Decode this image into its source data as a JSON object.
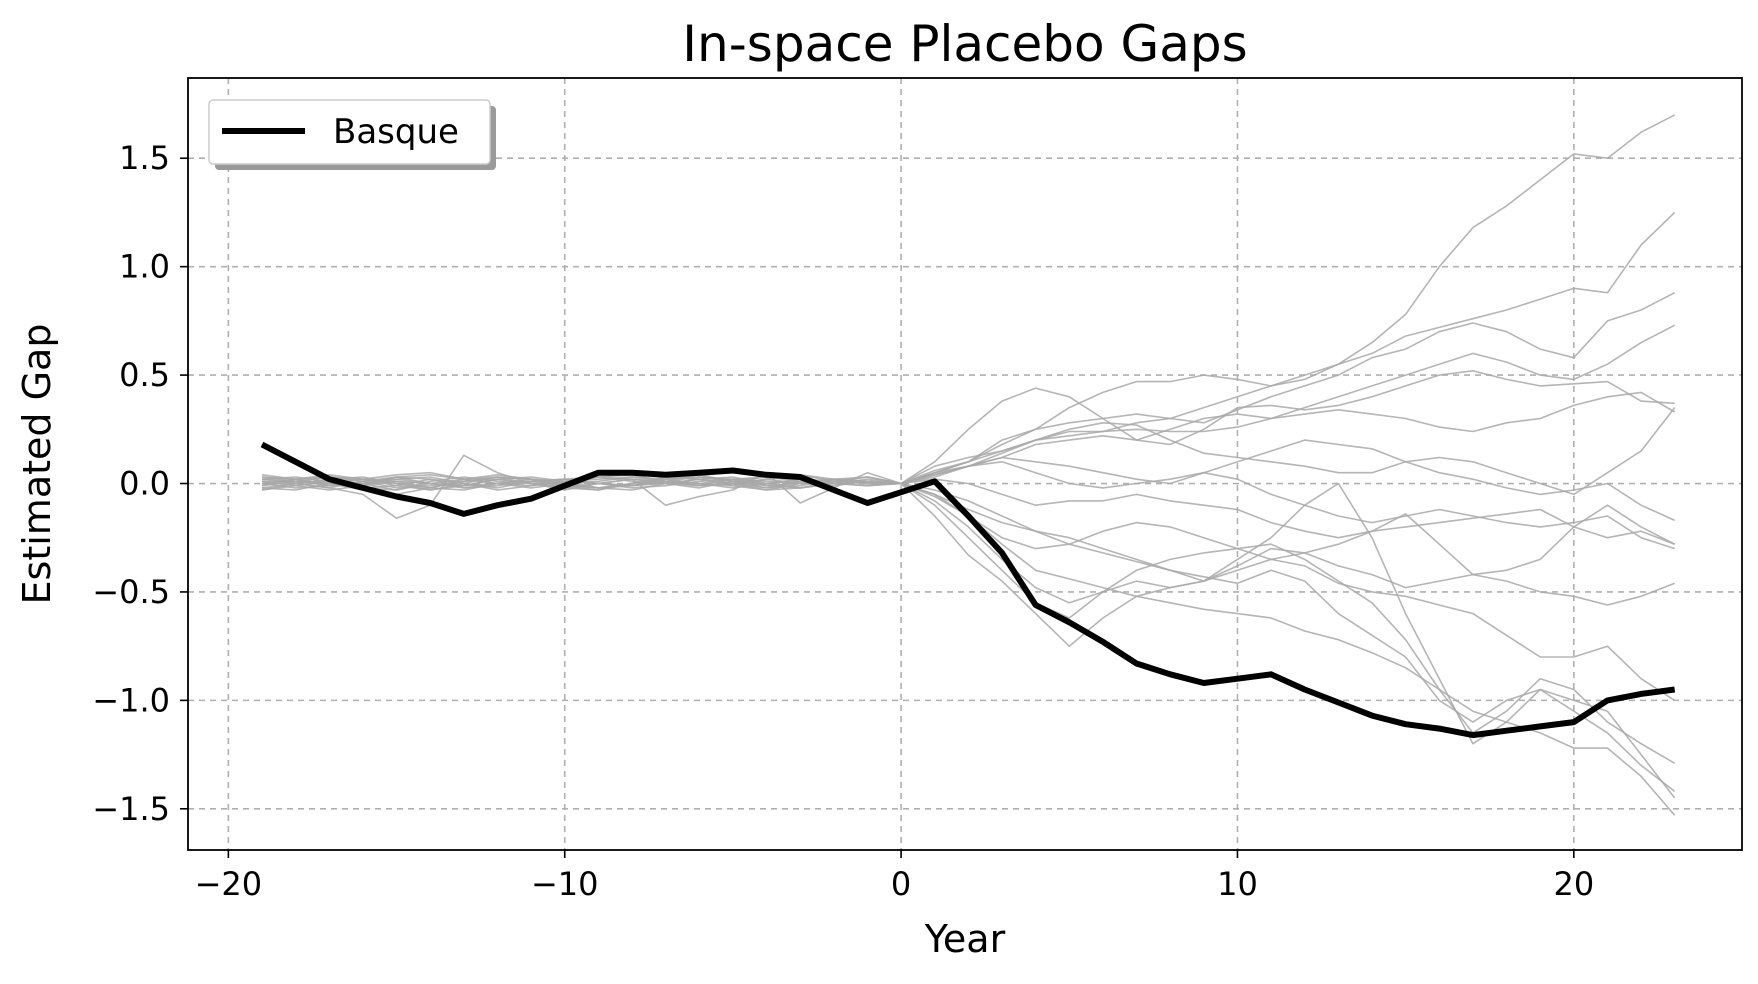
{
  "chart_data": {
    "type": "line",
    "title": "In-space Placebo Gaps",
    "xlabel": "Year",
    "ylabel": "Estimated Gap",
    "xlim": [
      -21.2,
      25
    ],
    "ylim": [
      -1.69,
      1.87
    ],
    "xticks": [
      -20,
      -10,
      0,
      10,
      20
    ],
    "xtick_labels": [
      "−20",
      "−10",
      "0",
      "10",
      "20"
    ],
    "yticks": [
      -1.5,
      -1.0,
      -0.5,
      0.0,
      0.5,
      1.0,
      1.5
    ],
    "ytick_labels": [
      "−1.5",
      "−1.0",
      "−0.5",
      "0.0",
      "0.5",
      "1.0",
      "1.5"
    ],
    "grid": true,
    "legend": {
      "position": "top-left",
      "entries": [
        "Basque"
      ]
    },
    "colors": {
      "treated": "#000000",
      "placebo": "#a8a8a8",
      "grid": "#b0b0b0"
    },
    "x": [
      -19,
      -18,
      -17,
      -16,
      -15,
      -14,
      -13,
      -12,
      -11,
      -10,
      -9,
      -8,
      -7,
      -6,
      -5,
      -4,
      -3,
      -2,
      -1,
      0,
      1,
      2,
      3,
      4,
      5,
      6,
      7,
      8,
      9,
      10,
      11,
      12,
      13,
      14,
      15,
      16,
      17,
      18,
      19,
      20,
      21,
      22,
      23
    ],
    "series": [
      {
        "name": "Basque",
        "role": "treated",
        "values": [
          0.18,
          0.1,
          0.02,
          -0.02,
          -0.06,
          -0.09,
          -0.14,
          -0.1,
          -0.07,
          -0.01,
          0.05,
          0.05,
          0.04,
          0.05,
          0.06,
          0.04,
          0.03,
          -0.03,
          -0.09,
          -0.04,
          0.01,
          -0.15,
          -0.32,
          -0.56,
          -0.64,
          -0.73,
          -0.83,
          -0.88,
          -0.92,
          -0.9,
          -0.88,
          -0.95,
          -1.01,
          -1.07,
          -1.11,
          -1.13,
          -1.16,
          -1.14,
          -1.12,
          -1.1,
          -1.0,
          -0.97,
          -0.95
        ]
      },
      {
        "role": "placebo",
        "values": [
          0.02,
          0.01,
          0.0,
          -0.01,
          0.03,
          0.02,
          -0.02,
          0.0,
          0.01,
          0.02,
          0.03,
          0.01,
          0.0,
          -0.01,
          0.02,
          0.03,
          0.01,
          0.0,
          0.02,
          0.0,
          0.05,
          0.1,
          0.18,
          0.25,
          0.35,
          0.42,
          0.47,
          0.47,
          0.5,
          0.48,
          0.45,
          0.5,
          0.55,
          0.65,
          0.78,
          1.0,
          1.18,
          1.28,
          1.4,
          1.52,
          1.5,
          1.62,
          1.7
        ]
      },
      {
        "role": "placebo",
        "values": [
          -0.03,
          -0.01,
          0.01,
          0.02,
          0.04,
          0.05,
          0.02,
          0.0,
          -0.01,
          0.01,
          0.02,
          0.03,
          0.01,
          0.0,
          0.02,
          0.01,
          0.0,
          0.01,
          0.03,
          0.0,
          0.08,
          0.12,
          0.15,
          0.2,
          0.22,
          0.24,
          0.28,
          0.3,
          0.35,
          0.4,
          0.45,
          0.48,
          0.55,
          0.6,
          0.68,
          0.72,
          0.76,
          0.8,
          0.85,
          0.9,
          0.88,
          1.1,
          1.25
        ]
      },
      {
        "role": "placebo",
        "values": [
          0.01,
          0.0,
          -0.02,
          0.01,
          0.03,
          0.0,
          -0.01,
          0.02,
          0.0,
          0.01,
          0.0,
          -0.01,
          0.02,
          0.03,
          0.01,
          0.0,
          0.02,
          0.01,
          0.0,
          0.0,
          0.06,
          0.1,
          0.2,
          0.25,
          0.28,
          0.3,
          0.32,
          0.3,
          0.28,
          0.34,
          0.4,
          0.45,
          0.5,
          0.58,
          0.62,
          0.7,
          0.74,
          0.7,
          0.62,
          0.58,
          0.75,
          0.8,
          0.88
        ]
      },
      {
        "role": "placebo",
        "values": [
          -0.02,
          0.0,
          0.02,
          0.0,
          -0.03,
          0.01,
          0.03,
          0.01,
          0.0,
          -0.02,
          0.0,
          0.02,
          0.01,
          -0.01,
          0.0,
          0.02,
          0.0,
          -0.01,
          0.01,
          0.0,
          0.04,
          0.08,
          0.12,
          0.18,
          0.2,
          0.22,
          0.2,
          0.25,
          0.3,
          0.32,
          0.3,
          0.35,
          0.4,
          0.45,
          0.5,
          0.55,
          0.6,
          0.56,
          0.5,
          0.48,
          0.55,
          0.65,
          0.73
        ]
      },
      {
        "role": "placebo",
        "values": [
          0.03,
          0.02,
          0.0,
          -0.03,
          -0.05,
          -0.02,
          0.01,
          0.03,
          0.02,
          0.0,
          -0.02,
          0.0,
          0.03,
          0.02,
          0.0,
          -0.02,
          0.01,
          0.02,
          0.0,
          0.0,
          0.1,
          0.25,
          0.38,
          0.44,
          0.4,
          0.3,
          0.2,
          0.18,
          0.25,
          0.35,
          0.36,
          0.34,
          0.36,
          0.4,
          0.45,
          0.5,
          0.52,
          0.48,
          0.45,
          0.46,
          0.47,
          0.38,
          0.37
        ]
      },
      {
        "role": "placebo",
        "values": [
          0.0,
          0.01,
          0.01,
          -0.02,
          -0.01,
          0.02,
          0.0,
          -0.02,
          0.01,
          0.02,
          0.0,
          -0.01,
          0.0,
          0.02,
          0.03,
          0.0,
          -0.02,
          0.0,
          0.01,
          0.0,
          0.05,
          0.1,
          0.15,
          0.2,
          0.24,
          0.24,
          0.25,
          0.24,
          0.24,
          0.26,
          0.3,
          0.32,
          0.34,
          0.32,
          0.3,
          0.26,
          0.24,
          0.28,
          0.3,
          0.36,
          0.4,
          0.42,
          0.33
        ]
      },
      {
        "role": "placebo",
        "values": [
          0.04,
          0.02,
          -0.01,
          0.0,
          0.02,
          0.03,
          0.0,
          -0.03,
          -0.01,
          0.01,
          0.03,
          0.02,
          0.0,
          -0.02,
          0.01,
          0.03,
          0.02,
          0.0,
          -0.01,
          0.0,
          0.04,
          0.08,
          0.14,
          0.2,
          0.25,
          0.28,
          0.27,
          0.2,
          0.14,
          0.12,
          0.1,
          0.08,
          0.05,
          0.05,
          0.1,
          0.12,
          0.1,
          0.05,
          0.0,
          -0.05,
          0.05,
          0.15,
          0.35
        ]
      },
      {
        "role": "placebo",
        "values": [
          -0.01,
          0.01,
          0.03,
          0.02,
          0.0,
          -0.02,
          0.02,
          0.04,
          0.02,
          0.0,
          0.01,
          0.03,
          0.02,
          0.0,
          -0.01,
          0.02,
          0.04,
          0.01,
          0.0,
          0.0,
          0.03,
          0.08,
          0.12,
          0.1,
          0.08,
          0.05,
          0.02,
          0.0,
          0.05,
          0.1,
          0.15,
          0.2,
          0.18,
          0.16,
          0.1,
          0.05,
          0.02,
          -0.02,
          -0.05,
          -0.03,
          0.0,
          -0.1,
          -0.17
        ]
      },
      {
        "role": "placebo",
        "values": [
          0.02,
          0.0,
          -0.02,
          -0.05,
          -0.16,
          -0.1,
          0.13,
          0.05,
          0.0,
          -0.03,
          0.0,
          0.02,
          -0.1,
          -0.06,
          -0.03,
          0.05,
          -0.09,
          -0.02,
          0.05,
          0.0,
          0.05,
          0.08,
          0.1,
          0.05,
          0.0,
          -0.02,
          0.0,
          0.02,
          0.05,
          0.02,
          -0.05,
          -0.1,
          -0.15,
          -0.18,
          -0.15,
          -0.12,
          -0.15,
          -0.18,
          -0.2,
          -0.18,
          -0.15,
          -0.25,
          -0.3
        ]
      },
      {
        "role": "placebo",
        "values": [
          0.01,
          -0.01,
          -0.03,
          -0.01,
          0.01,
          0.0,
          -0.01,
          0.0,
          0.02,
          0.01,
          0.0,
          -0.01,
          0.01,
          0.0,
          -0.02,
          0.0,
          0.01,
          0.0,
          -0.01,
          0.0,
          0.02,
          0.0,
          -0.05,
          -0.1,
          -0.08,
          -0.08,
          -0.05,
          -0.08,
          -0.1,
          -0.12,
          -0.18,
          -0.22,
          -0.25,
          -0.22,
          -0.2,
          -0.18,
          -0.16,
          -0.14,
          -0.12,
          -0.2,
          -0.1,
          -0.2,
          -0.28
        ]
      },
      {
        "role": "placebo",
        "values": [
          0.0,
          0.02,
          0.03,
          0.01,
          -0.02,
          -0.01,
          0.01,
          0.02,
          0.0,
          -0.01,
          -0.02,
          0.0,
          0.02,
          0.03,
          0.01,
          -0.01,
          0.0,
          0.02,
          0.01,
          0.0,
          -0.05,
          -0.12,
          -0.18,
          -0.22,
          -0.25,
          -0.3,
          -0.35,
          -0.4,
          -0.45,
          -0.38,
          -0.3,
          -0.32,
          -0.28,
          -0.22,
          -0.14,
          -0.28,
          -0.42,
          -0.4,
          -0.35,
          -0.2,
          -0.25,
          -0.22,
          -0.28
        ]
      },
      {
        "role": "placebo",
        "values": [
          -0.02,
          -0.03,
          0.0,
          0.02,
          0.01,
          -0.02,
          -0.03,
          0.0,
          0.01,
          0.0,
          -0.02,
          -0.03,
          0.0,
          0.02,
          0.0,
          -0.03,
          -0.02,
          0.0,
          0.01,
          0.0,
          -0.06,
          -0.15,
          -0.25,
          -0.3,
          -0.28,
          -0.22,
          -0.18,
          -0.2,
          -0.25,
          -0.3,
          -0.35,
          -0.32,
          -0.38,
          -0.42,
          -0.48,
          -0.45,
          -0.42,
          -0.45,
          -0.5,
          -0.52,
          -0.56,
          -0.52,
          -0.46
        ]
      },
      {
        "role": "placebo",
        "values": [
          0.03,
          0.01,
          -0.01,
          0.0,
          0.03,
          0.04,
          0.02,
          0.0,
          -0.02,
          0.0,
          0.03,
          0.04,
          0.01,
          -0.01,
          0.0,
          0.02,
          0.04,
          0.02,
          0.0,
          0.0,
          -0.08,
          -0.2,
          -0.35,
          -0.48,
          -0.55,
          -0.5,
          -0.45,
          -0.48,
          -0.45,
          -0.35,
          -0.25,
          -0.1,
          0.0,
          -0.25,
          -0.6,
          -0.9,
          -1.2,
          -1.1,
          -0.95,
          -1.0,
          -1.05,
          -1.25,
          -1.45
        ]
      },
      {
        "role": "placebo",
        "values": [
          -0.03,
          0.0,
          0.02,
          0.03,
          0.0,
          -0.03,
          -0.01,
          0.02,
          0.03,
          0.01,
          -0.02,
          -0.01,
          0.01,
          0.03,
          0.02,
          -0.01,
          -0.02,
          0.01,
          0.03,
          0.0,
          -0.1,
          -0.25,
          -0.4,
          -0.55,
          -0.62,
          -0.5,
          -0.4,
          -0.35,
          -0.32,
          -0.3,
          -0.28,
          -0.35,
          -0.45,
          -0.55,
          -0.72,
          -0.95,
          -1.15,
          -1.05,
          -0.9,
          -0.95,
          -1.1,
          -1.2,
          -1.29
        ]
      },
      {
        "role": "placebo",
        "values": [
          0.02,
          0.03,
          0.01,
          -0.02,
          -0.03,
          0.0,
          0.02,
          0.03,
          0.0,
          -0.02,
          -0.03,
          0.0,
          0.03,
          0.02,
          -0.01,
          -0.03,
          0.0,
          0.02,
          0.01,
          0.0,
          -0.15,
          -0.33,
          -0.45,
          -0.6,
          -0.75,
          -0.62,
          -0.52,
          -0.48,
          -0.45,
          -0.4,
          -0.35,
          -0.38,
          -0.46,
          -0.5,
          -0.52,
          -0.56,
          -0.6,
          -0.7,
          -0.8,
          -0.8,
          -0.75,
          -0.9,
          -1.0
        ]
      },
      {
        "role": "placebo",
        "values": [
          -0.01,
          0.02,
          0.04,
          0.02,
          -0.01,
          -0.03,
          0.0,
          0.03,
          0.02,
          -0.01,
          -0.03,
          0.0,
          0.02,
          0.04,
          0.01,
          -0.02,
          -0.01,
          0.02,
          0.03,
          0.0,
          -0.05,
          -0.15,
          -0.28,
          -0.4,
          -0.44,
          -0.48,
          -0.52,
          -0.55,
          -0.58,
          -0.6,
          -0.62,
          -0.68,
          -0.72,
          -0.78,
          -0.85,
          -0.95,
          -1.05,
          -1.1,
          -1.15,
          -1.22,
          -1.22,
          -1.35,
          -1.53
        ]
      },
      {
        "role": "placebo",
        "values": [
          0.0,
          -0.02,
          -0.01,
          0.01,
          0.02,
          0.0,
          -0.02,
          -0.01,
          0.01,
          0.02,
          0.0,
          -0.02,
          -0.01,
          0.01,
          0.02,
          0.0,
          -0.02,
          0.0,
          0.01,
          0.0,
          -0.03,
          -0.08,
          -0.15,
          -0.22,
          -0.28,
          -0.32,
          -0.36,
          -0.4,
          -0.43,
          -0.46,
          -0.4,
          -0.45,
          -0.6,
          -0.7,
          -0.8,
          -1.0,
          -1.1,
          -1.0,
          -0.95,
          -1.05,
          -1.15,
          -1.3,
          -1.42
        ]
      }
    ]
  }
}
